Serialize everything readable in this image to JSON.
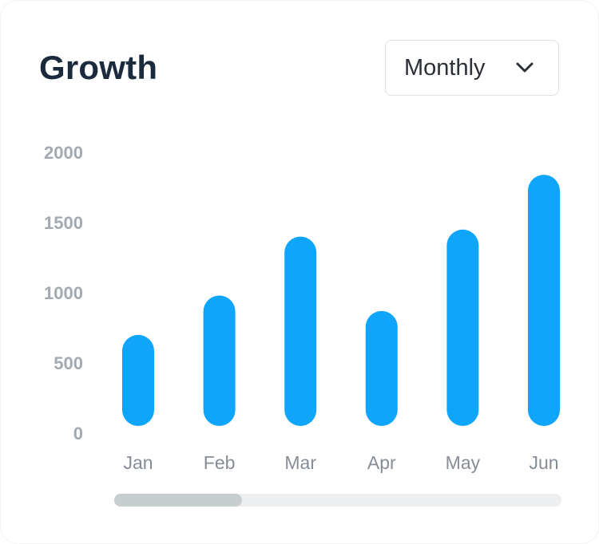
{
  "header": {
    "title": "Growth"
  },
  "period_select": {
    "selected": "Monthly",
    "icon": "chevron-down-icon"
  },
  "colors": {
    "bar": "#0ea5fb",
    "scroll_thumb": "#c8cdd0",
    "scroll_track": "#eceeef"
  },
  "scrollbar": {
    "thumb_fraction": 0.285,
    "position": 0
  },
  "chart_data": {
    "type": "bar",
    "title": "Growth",
    "xlabel": "",
    "ylabel": "",
    "categories": [
      "Jan",
      "Feb",
      "Mar",
      "Apr",
      "May",
      "Jun"
    ],
    "values": [
      700,
      980,
      1400,
      870,
      1450,
      1840
    ],
    "ylim": [
      0,
      2000
    ],
    "yticks": [
      0,
      500,
      1000,
      1500,
      2000
    ],
    "grid": false,
    "legend": "none"
  }
}
